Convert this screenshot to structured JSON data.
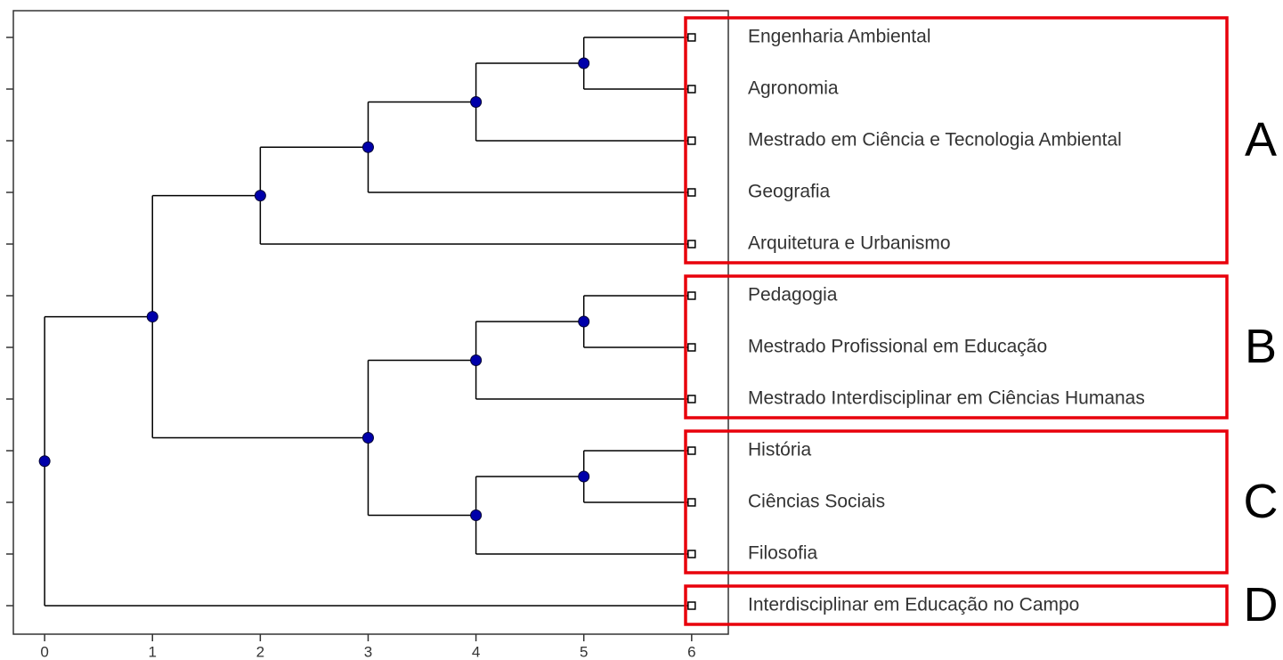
{
  "chart_data": {
    "type": "dendrogram",
    "xlim": [
      -0.29,
      6.34
    ],
    "xticks": [
      0,
      1,
      2,
      3,
      4,
      5,
      6
    ],
    "line_color": "#000000",
    "node_color": "#0000aa",
    "group_color": "#e8000b",
    "tree": {
      "x": 0,
      "children": [
        {
          "x": 1,
          "children": [
            {
              "x": 2,
              "children": [
                {
                  "x": 3,
                  "children": [
                    {
                      "x": 4,
                      "children": [
                        {
                          "x": 5,
                          "children": [
                            {
                              "x": 6
                            },
                            {
                              "x": 6
                            }
                          ]
                        },
                        {
                          "x": 6
                        }
                      ]
                    },
                    {
                      "x": 6
                    }
                  ]
                },
                {
                  "x": 6
                }
              ]
            },
            {
              "x": 3,
              "children": [
                {
                  "x": 4,
                  "children": [
                    {
                      "x": 5,
                      "children": [
                        {
                          "x": 6
                        },
                        {
                          "x": 6
                        }
                      ]
                    },
                    {
                      "x": 6
                    }
                  ]
                },
                {
                  "x": 4,
                  "children": [
                    {
                      "x": 5,
                      "children": [
                        {
                          "x": 6
                        },
                        {
                          "x": 6
                        }
                      ]
                    },
                    {
                      "x": 6
                    }
                  ]
                }
              ]
            }
          ]
        },
        {
          "x": 6
        }
      ]
    },
    "groups": [
      {
        "label": "A",
        "leaves": [
          "Engenharia Ambiental",
          "Agronomia",
          "Mestrado em Ciência e Tecnologia Ambiental",
          "Geografia",
          "Arquitetura e Urbanismo"
        ]
      },
      {
        "label": "B",
        "leaves": [
          "Pedagogia",
          "Mestrado Profissional em Educação",
          "Mestrado Interdisciplinar em Ciências Humanas"
        ]
      },
      {
        "label": "C",
        "leaves": [
          "História",
          "Ciências Sociais",
          "Filosofia"
        ]
      },
      {
        "label": "D",
        "leaves": [
          "Interdisciplinar em Educação no Campo"
        ]
      }
    ]
  }
}
